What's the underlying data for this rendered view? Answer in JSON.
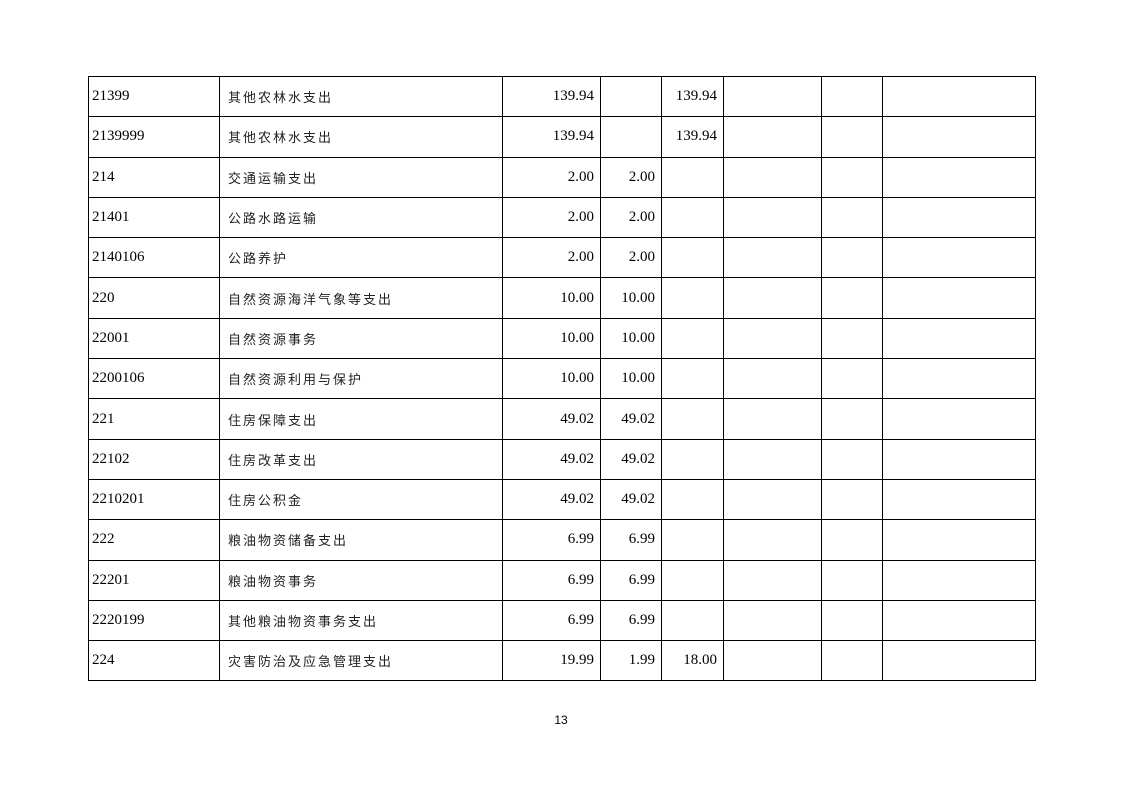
{
  "table": {
    "rows": [
      {
        "code": "21399",
        "name": "其他农林水支出",
        "c1": "139.94",
        "c2": "",
        "c3": "139.94",
        "c4": "",
        "c5": "",
        "c6": ""
      },
      {
        "code": "2139999",
        "name": "其他农林水支出",
        "c1": "139.94",
        "c2": "",
        "c3": "139.94",
        "c4": "",
        "c5": "",
        "c6": ""
      },
      {
        "code": "214",
        "name": "交通运输支出",
        "c1": "2.00",
        "c2": "2.00",
        "c3": "",
        "c4": "",
        "c5": "",
        "c6": ""
      },
      {
        "code": "21401",
        "name": "公路水路运输",
        "c1": "2.00",
        "c2": "2.00",
        "c3": "",
        "c4": "",
        "c5": "",
        "c6": ""
      },
      {
        "code": "2140106",
        "name": "公路养护",
        "c1": "2.00",
        "c2": "2.00",
        "c3": "",
        "c4": "",
        "c5": "",
        "c6": ""
      },
      {
        "code": "220",
        "name": "自然资源海洋气象等支出",
        "c1": "10.00",
        "c2": "10.00",
        "c3": "",
        "c4": "",
        "c5": "",
        "c6": ""
      },
      {
        "code": "22001",
        "name": "自然资源事务",
        "c1": "10.00",
        "c2": "10.00",
        "c3": "",
        "c4": "",
        "c5": "",
        "c6": ""
      },
      {
        "code": "2200106",
        "name": "自然资源利用与保护",
        "c1": "10.00",
        "c2": "10.00",
        "c3": "",
        "c4": "",
        "c5": "",
        "c6": ""
      },
      {
        "code": "221",
        "name": "住房保障支出",
        "c1": "49.02",
        "c2": "49.02",
        "c3": "",
        "c4": "",
        "c5": "",
        "c6": ""
      },
      {
        "code": "22102",
        "name": "住房改革支出",
        "c1": "49.02",
        "c2": "49.02",
        "c3": "",
        "c4": "",
        "c5": "",
        "c6": ""
      },
      {
        "code": "2210201",
        "name": "住房公积金",
        "c1": "49.02",
        "c2": "49.02",
        "c3": "",
        "c4": "",
        "c5": "",
        "c6": ""
      },
      {
        "code": "222",
        "name": "粮油物资储备支出",
        "c1": "6.99",
        "c2": "6.99",
        "c3": "",
        "c4": "",
        "c5": "",
        "c6": ""
      },
      {
        "code": "22201",
        "name": "粮油物资事务",
        "c1": "6.99",
        "c2": "6.99",
        "c3": "",
        "c4": "",
        "c5": "",
        "c6": ""
      },
      {
        "code": "2220199",
        "name": "其他粮油物资事务支出",
        "c1": "6.99",
        "c2": "6.99",
        "c3": "",
        "c4": "",
        "c5": "",
        "c6": ""
      },
      {
        "code": "224",
        "name": "灾害防治及应急管理支出",
        "c1": "19.99",
        "c2": "1.99",
        "c3": "18.00",
        "c4": "",
        "c5": "",
        "c6": ""
      }
    ]
  },
  "footer": {
    "page_number": "13"
  }
}
